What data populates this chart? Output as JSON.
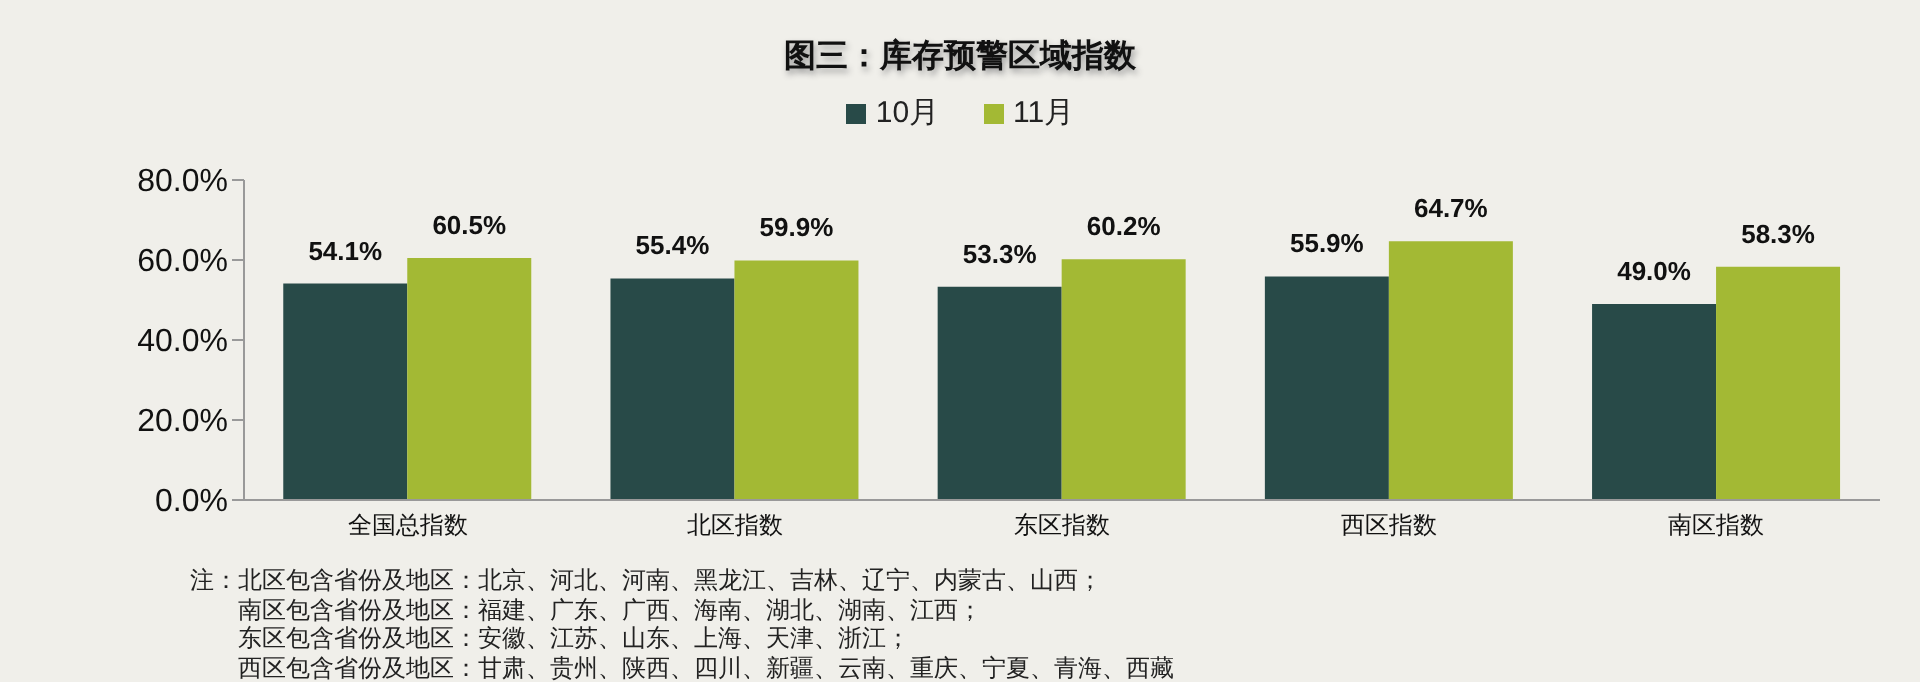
{
  "chart_data": {
    "type": "bar",
    "title": "图三：库存预警区域指数",
    "categories": [
      "全国总指数",
      "北区指数",
      "东区指数",
      "西区指数",
      "南区指数"
    ],
    "series": [
      {
        "name": "10月",
        "color": "#284a48",
        "values": [
          54.1,
          55.4,
          53.3,
          55.9,
          49.0
        ],
        "value_labels": [
          "54.1%",
          "55.4%",
          "53.3%",
          "55.9%",
          "49.0%"
        ]
      },
      {
        "name": "11月",
        "color": "#a3b934",
        "values": [
          60.5,
          59.9,
          60.2,
          64.7,
          58.3
        ],
        "value_labels": [
          "60.5%",
          "59.9%",
          "60.2%",
          "64.7%",
          "58.3%"
        ]
      }
    ],
    "ylim": [
      0,
      80
    ],
    "yticks": [
      {
        "value": 0,
        "label": "0.0%"
      },
      {
        "value": 20,
        "label": "20.0%"
      },
      {
        "value": 40,
        "label": "40.0%"
      },
      {
        "value": 60,
        "label": "60.0%"
      },
      {
        "value": 80,
        "label": "80.0%"
      }
    ],
    "grid": false,
    "legend": "top",
    "annotations": [
      "注：北区包含省份及地区：北京、河北、河南、黑龙江、吉林、辽宁、内蒙古、山西；",
      "南区包含省份及地区：福建、广东、广西、海南、湖北、湖南、江西；",
      "东区包含省份及地区：安徽、江苏、山东、上海、天津、浙江；",
      "西区包含省份及地区：甘肃、贵州、陕西、四川、新疆、云南、重庆、宁夏、青海、西藏"
    ]
  }
}
